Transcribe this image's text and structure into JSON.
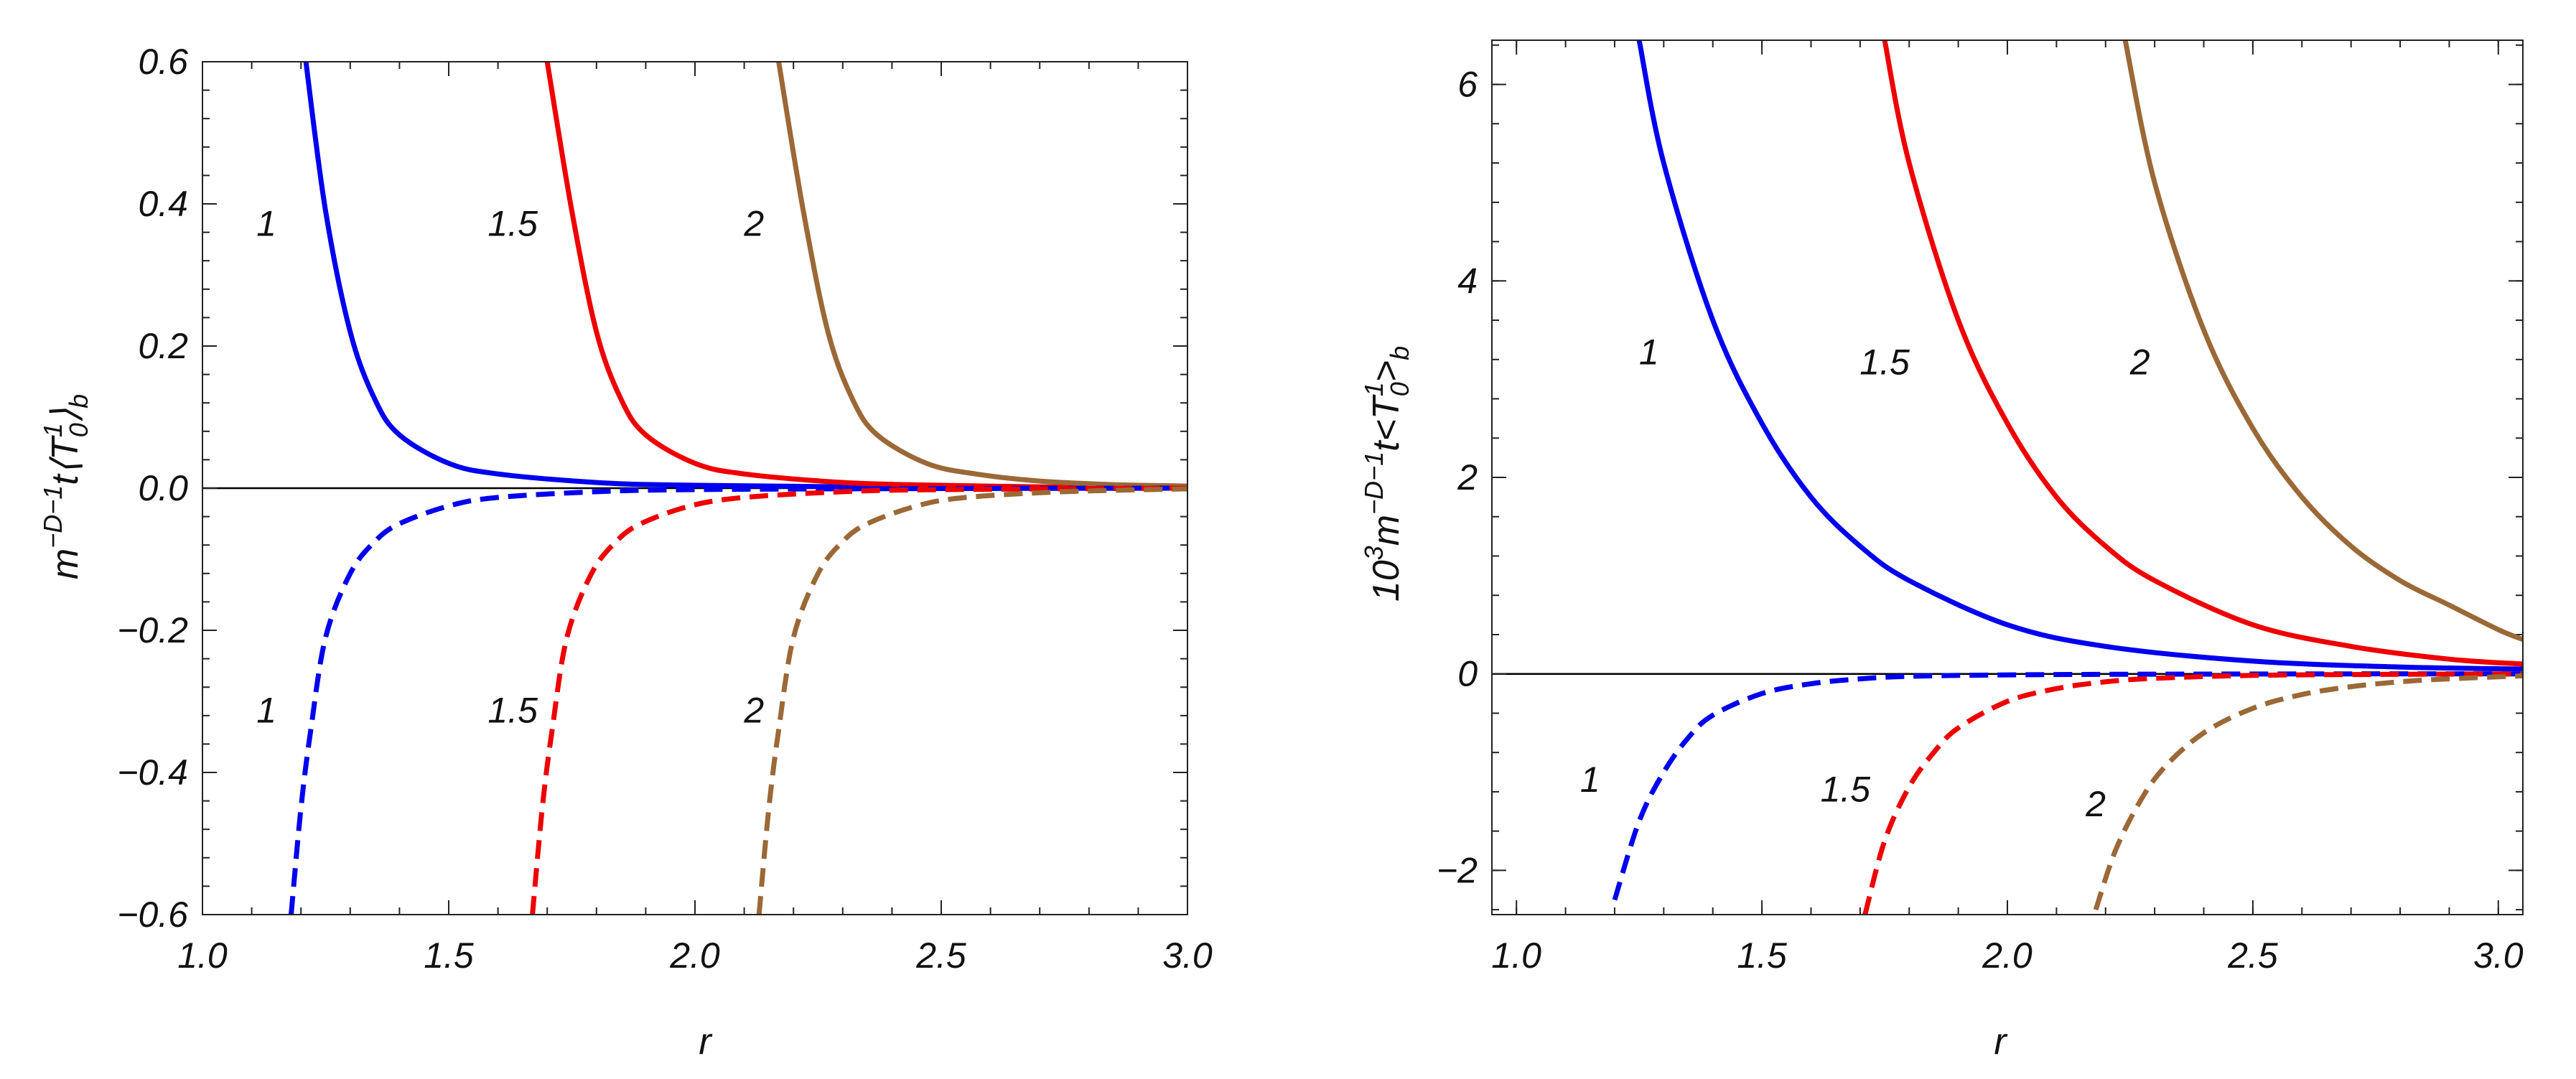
{
  "chart_data": [
    {
      "type": "line",
      "title": "",
      "xlabel": "r",
      "ylabel_parts": {
        "lead": "",
        "m": "m",
        "exp": "−D−1",
        "t": "t",
        "open": "⟨",
        "T": "T",
        "sub": "0",
        "sup": "1",
        "close": "⟩",
        "b": "b"
      },
      "xlim": [
        1.0,
        3.0
      ],
      "ylim": [
        -0.6,
        0.6
      ],
      "xticks": [
        1.0,
        1.5,
        2.0,
        2.5,
        3.0
      ],
      "xtick_labels": [
        "1.0",
        "1.5",
        "2.0",
        "2.5",
        "3.0"
      ],
      "yticks": [
        -0.6,
        -0.4,
        -0.2,
        0.0,
        0.2,
        0.4,
        0.6
      ],
      "ytick_labels": [
        "−0.6",
        "−0.4",
        "−0.2",
        "0.0",
        "0.2",
        "0.4",
        "0.6"
      ],
      "series": [
        {
          "name": "1",
          "style": "solid",
          "color": "#0000ee",
          "x": [
            1.21,
            1.25,
            1.3,
            1.35,
            1.4,
            1.5,
            1.6,
            1.8,
            2.0,
            2.5,
            3.0
          ],
          "y": [
            0.6,
            0.39,
            0.22,
            0.125,
            0.075,
            0.035,
            0.02,
            0.008,
            0.004,
            0.001,
            0.0005
          ]
        },
        {
          "name": "1.5",
          "style": "solid",
          "color": "#ee0000",
          "x": [
            1.7,
            1.75,
            1.8,
            1.85,
            1.9,
            2.0,
            2.1,
            2.3,
            2.5,
            2.75,
            3.0
          ],
          "y": [
            0.6,
            0.39,
            0.22,
            0.125,
            0.075,
            0.035,
            0.02,
            0.008,
            0.004,
            0.0015,
            0.001
          ]
        },
        {
          "name": "2",
          "style": "solid",
          "color": "#9b6836",
          "x": [
            2.17,
            2.22,
            2.27,
            2.32,
            2.37,
            2.47,
            2.57,
            2.7,
            2.85,
            3.0
          ],
          "y": [
            0.6,
            0.39,
            0.22,
            0.125,
            0.075,
            0.035,
            0.02,
            0.01,
            0.005,
            0.003
          ]
        },
        {
          "name": "1",
          "style": "dashed",
          "color": "#0000ee",
          "x": [
            1.18,
            1.2,
            1.22,
            1.25,
            1.3,
            1.35,
            1.4,
            1.5,
            1.6,
            1.8,
            2.0,
            2.5,
            3.0
          ],
          "y": [
            -0.6,
            -0.45,
            -0.34,
            -0.21,
            -0.12,
            -0.075,
            -0.05,
            -0.025,
            -0.013,
            -0.005,
            -0.002,
            -0.0005,
            0.0
          ]
        },
        {
          "name": "1.5",
          "style": "dashed",
          "color": "#ee0000",
          "x": [
            1.67,
            1.69,
            1.71,
            1.74,
            1.79,
            1.84,
            1.89,
            1.99,
            2.1,
            2.3,
            2.5,
            3.0
          ],
          "y": [
            -0.6,
            -0.45,
            -0.34,
            -0.21,
            -0.12,
            -0.075,
            -0.05,
            -0.025,
            -0.013,
            -0.005,
            -0.002,
            0.0
          ]
        },
        {
          "name": "2",
          "style": "dashed",
          "color": "#9b6836",
          "x": [
            2.13,
            2.15,
            2.17,
            2.2,
            2.25,
            2.3,
            2.35,
            2.45,
            2.55,
            2.75,
            3.0
          ],
          "y": [
            -0.6,
            -0.45,
            -0.34,
            -0.21,
            -0.12,
            -0.075,
            -0.05,
            -0.025,
            -0.013,
            -0.005,
            -0.001
          ]
        }
      ],
      "annotations": [
        {
          "text": "1",
          "x": 1.13,
          "y": 0.355
        },
        {
          "text": "1.5",
          "x": 1.63,
          "y": 0.355
        },
        {
          "text": "2",
          "x": 2.12,
          "y": 0.355
        },
        {
          "text": "1",
          "x": 1.13,
          "y": -0.33
        },
        {
          "text": "1.5",
          "x": 1.63,
          "y": -0.33
        },
        {
          "text": "2",
          "x": 2.12,
          "y": -0.33
        }
      ]
    },
    {
      "type": "line",
      "title": "",
      "xlabel": "r",
      "ylabel_parts": {
        "lead": "10",
        "lead_sup": "3",
        "m": "m",
        "exp": "−D−1",
        "t": "t",
        "open": "<",
        "T": "T",
        "sub": "0",
        "sup": "1",
        "close": ">",
        "b": "b"
      },
      "xlim": [
        0.95,
        3.05
      ],
      "ylim": [
        -2.45,
        6.45
      ],
      "xticks": [
        1.0,
        1.5,
        2.0,
        2.5,
        3.0
      ],
      "xtick_labels": [
        "1.0",
        "1.5",
        "2.0",
        "2.5",
        "3.0"
      ],
      "yticks": [
        -2,
        0,
        2,
        4,
        6
      ],
      "ytick_labels": [
        "−2",
        "0",
        "2",
        "4",
        "6"
      ],
      "series": [
        {
          "name": "1",
          "style": "solid",
          "color": "#0000ee",
          "x": [
            1.25,
            1.3,
            1.4,
            1.5,
            1.6,
            1.7,
            1.8,
            2.0,
            2.2,
            2.5,
            2.8,
            3.05
          ],
          "y": [
            6.45,
            5.2,
            3.6,
            2.55,
            1.8,
            1.3,
            0.95,
            0.5,
            0.28,
            0.13,
            0.07,
            0.05
          ]
        },
        {
          "name": "1.5",
          "style": "solid",
          "color": "#ee0000",
          "x": [
            1.75,
            1.8,
            1.9,
            2.0,
            2.1,
            2.2,
            2.3,
            2.5,
            2.7,
            2.9,
            3.05
          ],
          "y": [
            6.45,
            5.2,
            3.6,
            2.55,
            1.8,
            1.3,
            0.95,
            0.5,
            0.28,
            0.15,
            0.1
          ]
        },
        {
          "name": "2",
          "style": "solid",
          "color": "#9b6836",
          "x": [
            2.24,
            2.3,
            2.4,
            2.5,
            2.6,
            2.7,
            2.8,
            2.9,
            3.0,
            3.05
          ],
          "y": [
            6.45,
            5.0,
            3.5,
            2.5,
            1.8,
            1.3,
            0.95,
            0.7,
            0.45,
            0.35
          ]
        },
        {
          "name": "1",
          "style": "dashed",
          "color": "#0000ee",
          "x": [
            1.2,
            1.25,
            1.3,
            1.35,
            1.4,
            1.5,
            1.6,
            1.7,
            1.8,
            2.0,
            2.3,
            2.7,
            3.05
          ],
          "y": [
            -2.3,
            -1.5,
            -1.0,
            -0.65,
            -0.42,
            -0.2,
            -0.1,
            -0.05,
            -0.025,
            -0.01,
            -0.003,
            0.0,
            0.0
          ]
        },
        {
          "name": "1.5",
          "style": "dashed",
          "color": "#ee0000",
          "x": [
            1.71,
            1.75,
            1.8,
            1.85,
            1.9,
            2.0,
            2.1,
            2.2,
            2.3,
            2.5,
            2.8,
            3.05
          ],
          "y": [
            -2.45,
            -1.7,
            -1.15,
            -0.8,
            -0.55,
            -0.28,
            -0.15,
            -0.08,
            -0.045,
            -0.015,
            -0.004,
            0.0
          ]
        },
        {
          "name": "2",
          "style": "dashed",
          "color": "#9b6836",
          "x": [
            2.18,
            2.22,
            2.27,
            2.32,
            2.4,
            2.5,
            2.6,
            2.7,
            2.8,
            2.9,
            3.05
          ],
          "y": [
            -2.4,
            -1.8,
            -1.3,
            -0.95,
            -0.6,
            -0.35,
            -0.21,
            -0.13,
            -0.08,
            -0.05,
            -0.02
          ]
        }
      ],
      "annotations": [
        {
          "text": "1",
          "x": 1.27,
          "y": 3.15
        },
        {
          "text": "1.5",
          "x": 1.75,
          "y": 3.05
        },
        {
          "text": "2",
          "x": 2.27,
          "y": 3.05
        },
        {
          "text": "1",
          "x": 1.15,
          "y": -1.2
        },
        {
          "text": "1.5",
          "x": 1.67,
          "y": -1.3
        },
        {
          "text": "2",
          "x": 2.18,
          "y": -1.45
        }
      ]
    }
  ]
}
